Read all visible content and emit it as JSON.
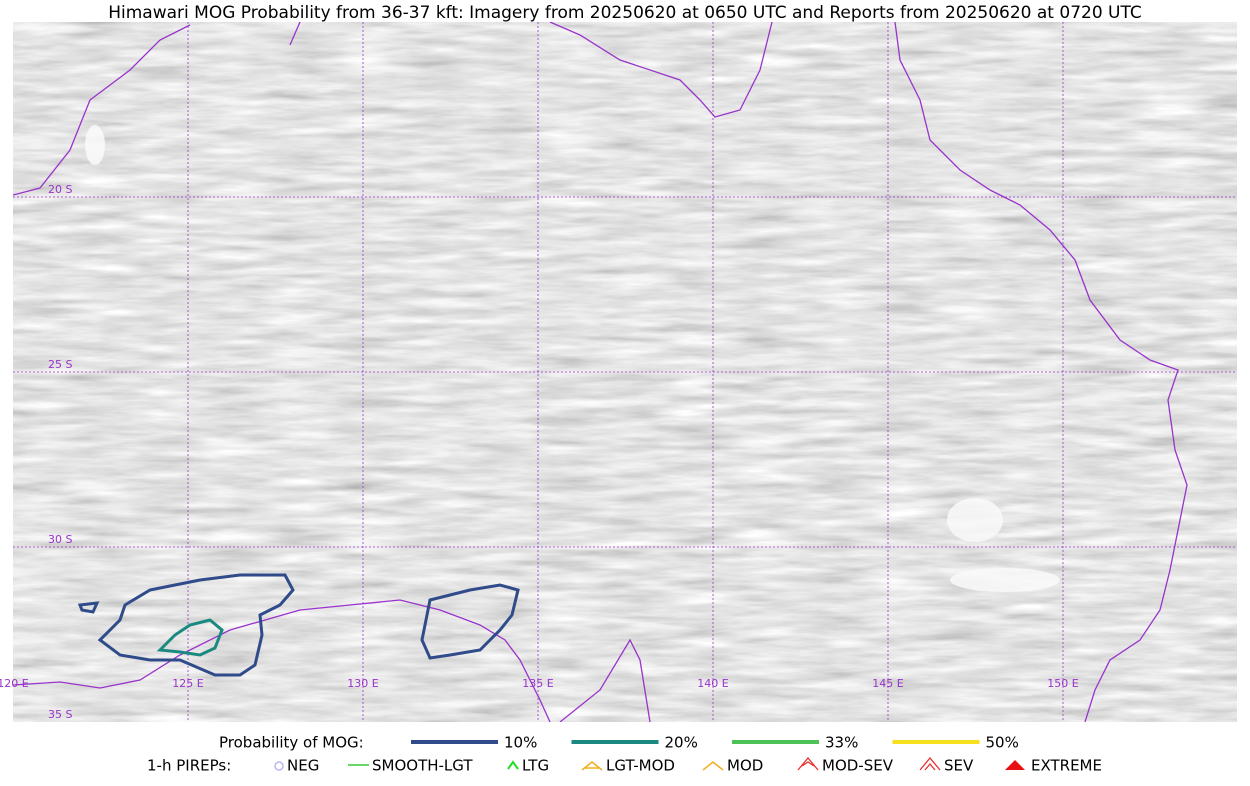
{
  "title": "Himawari MOG Probability from 36-37 kft: Imagery from 20250620 at 0650 UTC and Reports from 20250620 at 0720 UTC",
  "grid": {
    "lon_labels": [
      "120 E",
      "125 E",
      "130 E",
      "135 E",
      "140 E",
      "145 E",
      "150 E"
    ],
    "lat_labels": [
      "20 S",
      "25 S",
      "30 S",
      "35 S"
    ]
  },
  "legend": {
    "mog": {
      "title": "Probability of MOG:",
      "items": [
        {
          "label": "10%",
          "color": "#2f4b8a"
        },
        {
          "label": "20%",
          "color": "#1a8a80"
        },
        {
          "label": "33%",
          "color": "#4cc257"
        },
        {
          "label": "50%",
          "color": "#f7df1e"
        }
      ]
    },
    "pireps": {
      "title": "1-h PIREPs:",
      "items": [
        {
          "label": "NEG",
          "color": "#b8b8f0"
        },
        {
          "label": "SMOOTH-LGT",
          "color": "#33cc33"
        },
        {
          "label": "LTG",
          "color": "#22dd22"
        },
        {
          "label": "LGT-MOD",
          "color": "#f0b020"
        },
        {
          "label": "MOD",
          "color": "#f0b020"
        },
        {
          "label": "MOD-SEV",
          "color": "#e83030"
        },
        {
          "label": "SEV",
          "color": "#e83030"
        },
        {
          "label": "EXTREME",
          "color": "#e81010"
        }
      ]
    }
  }
}
